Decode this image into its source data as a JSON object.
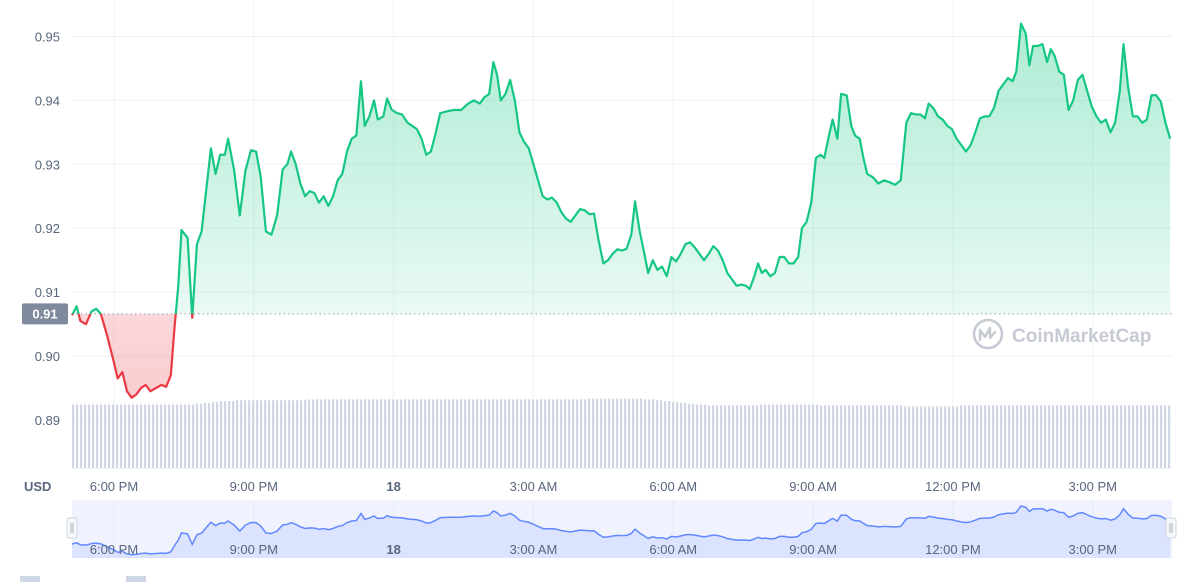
{
  "currency_label": "USD",
  "watermark": "CoinMarketCap",
  "reference_price_label": "0.91",
  "colors": {
    "up": "#16c784",
    "down": "#ea3943",
    "grid": "#eff2f5",
    "volume": "#cfd6e4",
    "navigator_line": "#6188ff",
    "navigator_fill": "#dbe3ff",
    "ref_badge": "#808a9d"
  },
  "chart_data": {
    "type": "line",
    "title": "",
    "xlabel": "",
    "ylabel": "USD",
    "ylim": [
      0.8825,
      0.9557
    ],
    "yticks": [
      0.89,
      0.9,
      0.91,
      0.92,
      0.93,
      0.94,
      0.95
    ],
    "ytick_labels": [
      "0.89",
      "0.90",
      "0.91",
      "0.92",
      "0.93",
      "0.94",
      "0.95"
    ],
    "xlim_hours": [
      17.1,
      40.7
    ],
    "xticks": [
      {
        "t": 18,
        "label": "6:00 PM",
        "bold": false
      },
      {
        "t": 21,
        "label": "9:00 PM",
        "bold": false
      },
      {
        "t": 24,
        "label": "18",
        "bold": true
      },
      {
        "t": 27,
        "label": "3:00 AM",
        "bold": false
      },
      {
        "t": 30,
        "label": "6:00 AM",
        "bold": false
      },
      {
        "t": 33,
        "label": "9:00 AM",
        "bold": false
      },
      {
        "t": 36,
        "label": "12:00 PM",
        "bold": false
      },
      {
        "t": 39,
        "label": "3:00 PM",
        "bold": false
      }
    ],
    "reference_value": 0.9066,
    "grid": true,
    "series": [
      {
        "points": [
          [
            17.1,
            0.9064
          ],
          [
            17.2,
            0.9078
          ],
          [
            17.28,
            0.9055
          ],
          [
            17.4,
            0.905
          ],
          [
            17.52,
            0.907
          ],
          [
            17.62,
            0.9074
          ],
          [
            17.72,
            0.9066
          ],
          [
            17.85,
            0.9033
          ],
          [
            18.0,
            0.899
          ],
          [
            18.08,
            0.8965
          ],
          [
            18.18,
            0.8975
          ],
          [
            18.28,
            0.8945
          ],
          [
            18.38,
            0.8935
          ],
          [
            18.48,
            0.894
          ],
          [
            18.58,
            0.895
          ],
          [
            18.68,
            0.8955
          ],
          [
            18.78,
            0.8945
          ],
          [
            18.9,
            0.895
          ],
          [
            19.02,
            0.8955
          ],
          [
            19.12,
            0.8952
          ],
          [
            19.22,
            0.897
          ],
          [
            19.3,
            0.9045
          ],
          [
            19.38,
            0.911
          ],
          [
            19.45,
            0.9197
          ],
          [
            19.58,
            0.9185
          ],
          [
            19.68,
            0.906
          ],
          [
            19.78,
            0.9175
          ],
          [
            19.88,
            0.9195
          ],
          [
            19.98,
            0.926
          ],
          [
            20.08,
            0.9325
          ],
          [
            20.18,
            0.9285
          ],
          [
            20.28,
            0.9315
          ],
          [
            20.38,
            0.9315
          ],
          [
            20.45,
            0.934
          ],
          [
            20.58,
            0.929
          ],
          [
            20.7,
            0.922
          ],
          [
            20.82,
            0.929
          ],
          [
            20.94,
            0.9322
          ],
          [
            21.05,
            0.932
          ],
          [
            21.15,
            0.928
          ],
          [
            21.26,
            0.9195
          ],
          [
            21.38,
            0.919
          ],
          [
            21.5,
            0.922
          ],
          [
            21.62,
            0.9292
          ],
          [
            21.72,
            0.93
          ],
          [
            21.8,
            0.932
          ],
          [
            21.9,
            0.93
          ],
          [
            22.0,
            0.927
          ],
          [
            22.1,
            0.925
          ],
          [
            22.2,
            0.9258
          ],
          [
            22.3,
            0.9255
          ],
          [
            22.4,
            0.924
          ],
          [
            22.5,
            0.925
          ],
          [
            22.6,
            0.9235
          ],
          [
            22.7,
            0.925
          ],
          [
            22.8,
            0.9275
          ],
          [
            22.9,
            0.9285
          ],
          [
            23.0,
            0.932
          ],
          [
            23.1,
            0.934
          ],
          [
            23.2,
            0.9345
          ],
          [
            23.3,
            0.943
          ],
          [
            23.38,
            0.936
          ],
          [
            23.48,
            0.9375
          ],
          [
            23.58,
            0.94
          ],
          [
            23.66,
            0.937
          ],
          [
            23.78,
            0.9375
          ],
          [
            23.86,
            0.9403
          ],
          [
            23.96,
            0.9385
          ],
          [
            24.08,
            0.938
          ],
          [
            24.18,
            0.9378
          ],
          [
            24.3,
            0.9365
          ],
          [
            24.4,
            0.936
          ],
          [
            24.5,
            0.9355
          ],
          [
            24.6,
            0.934
          ],
          [
            24.7,
            0.9315
          ],
          [
            24.8,
            0.932
          ],
          [
            24.9,
            0.9348
          ],
          [
            25.0,
            0.938
          ],
          [
            25.15,
            0.9383
          ],
          [
            25.3,
            0.9385
          ],
          [
            25.45,
            0.9385
          ],
          [
            25.6,
            0.9395
          ],
          [
            25.72,
            0.94
          ],
          [
            25.85,
            0.9395
          ],
          [
            25.95,
            0.9405
          ],
          [
            26.05,
            0.941
          ],
          [
            26.14,
            0.946
          ],
          [
            26.22,
            0.944
          ],
          [
            26.3,
            0.94
          ],
          [
            26.4,
            0.941
          ],
          [
            26.5,
            0.9432
          ],
          [
            26.6,
            0.94
          ],
          [
            26.7,
            0.935
          ],
          [
            26.8,
            0.9335
          ],
          [
            26.9,
            0.9325
          ],
          [
            27.0,
            0.93
          ],
          [
            27.1,
            0.9275
          ],
          [
            27.2,
            0.925
          ],
          [
            27.3,
            0.9245
          ],
          [
            27.4,
            0.9248
          ],
          [
            27.5,
            0.924
          ],
          [
            27.6,
            0.9225
          ],
          [
            27.7,
            0.9215
          ],
          [
            27.8,
            0.921
          ],
          [
            27.9,
            0.922
          ],
          [
            28.0,
            0.923
          ],
          [
            28.1,
            0.9228
          ],
          [
            28.2,
            0.9222
          ],
          [
            28.3,
            0.9223
          ],
          [
            28.4,
            0.918
          ],
          [
            28.5,
            0.9145
          ],
          [
            28.6,
            0.915
          ],
          [
            28.7,
            0.916
          ],
          [
            28.8,
            0.9167
          ],
          [
            28.9,
            0.9165
          ],
          [
            29.0,
            0.9168
          ],
          [
            29.1,
            0.919
          ],
          [
            29.18,
            0.9242
          ],
          [
            29.28,
            0.9195
          ],
          [
            29.38,
            0.916
          ],
          [
            29.46,
            0.913
          ],
          [
            29.56,
            0.915
          ],
          [
            29.66,
            0.9135
          ],
          [
            29.76,
            0.914
          ],
          [
            29.86,
            0.9125
          ],
          [
            29.96,
            0.9155
          ],
          [
            30.06,
            0.9148
          ],
          [
            30.16,
            0.916
          ],
          [
            30.26,
            0.9175
          ],
          [
            30.36,
            0.9178
          ],
          [
            30.46,
            0.917
          ],
          [
            30.56,
            0.916
          ],
          [
            30.66,
            0.915
          ],
          [
            30.76,
            0.916
          ],
          [
            30.86,
            0.9172
          ],
          [
            30.96,
            0.9165
          ],
          [
            31.06,
            0.915
          ],
          [
            31.16,
            0.913
          ],
          [
            31.26,
            0.912
          ],
          [
            31.36,
            0.911
          ],
          [
            31.46,
            0.9112
          ],
          [
            31.56,
            0.911
          ],
          [
            31.64,
            0.9105
          ],
          [
            31.74,
            0.9125
          ],
          [
            31.82,
            0.9145
          ],
          [
            31.9,
            0.913
          ],
          [
            31.98,
            0.9135
          ],
          [
            32.08,
            0.9125
          ],
          [
            32.18,
            0.913
          ],
          [
            32.28,
            0.9155
          ],
          [
            32.38,
            0.9155
          ],
          [
            32.48,
            0.9145
          ],
          [
            32.58,
            0.9145
          ],
          [
            32.68,
            0.9155
          ],
          [
            32.76,
            0.92
          ],
          [
            32.86,
            0.921
          ],
          [
            32.96,
            0.924
          ],
          [
            33.06,
            0.931
          ],
          [
            33.16,
            0.9315
          ],
          [
            33.24,
            0.931
          ],
          [
            33.34,
            0.9345
          ],
          [
            33.42,
            0.937
          ],
          [
            33.52,
            0.934
          ],
          [
            33.6,
            0.941
          ],
          [
            33.72,
            0.9408
          ],
          [
            33.82,
            0.936
          ],
          [
            33.9,
            0.9345
          ],
          [
            34.0,
            0.934
          ],
          [
            34.08,
            0.931
          ],
          [
            34.16,
            0.9285
          ],
          [
            34.28,
            0.928
          ],
          [
            34.4,
            0.927
          ],
          [
            34.52,
            0.9275
          ],
          [
            34.64,
            0.9272
          ],
          [
            34.76,
            0.9268
          ],
          [
            34.88,
            0.9275
          ],
          [
            35.0,
            0.9365
          ],
          [
            35.1,
            0.938
          ],
          [
            35.2,
            0.9378
          ],
          [
            35.3,
            0.9378
          ],
          [
            35.4,
            0.9372
          ],
          [
            35.48,
            0.9395
          ],
          [
            35.58,
            0.9388
          ],
          [
            35.68,
            0.9375
          ],
          [
            35.78,
            0.937
          ],
          [
            35.88,
            0.936
          ],
          [
            35.98,
            0.9355
          ],
          [
            36.08,
            0.934
          ],
          [
            36.18,
            0.933
          ],
          [
            36.28,
            0.932
          ],
          [
            36.38,
            0.933
          ],
          [
            36.48,
            0.935
          ],
          [
            36.58,
            0.9372
          ],
          [
            36.68,
            0.9375
          ],
          [
            36.78,
            0.9375
          ],
          [
            36.88,
            0.9388
          ],
          [
            36.98,
            0.9415
          ],
          [
            37.08,
            0.9425
          ],
          [
            37.18,
            0.9435
          ],
          [
            37.28,
            0.943
          ],
          [
            37.36,
            0.9445
          ],
          [
            37.46,
            0.952
          ],
          [
            37.56,
            0.9505
          ],
          [
            37.64,
            0.9455
          ],
          [
            37.72,
            0.9485
          ],
          [
            37.82,
            0.9485
          ],
          [
            37.92,
            0.9488
          ],
          [
            38.02,
            0.946
          ],
          [
            38.1,
            0.948
          ],
          [
            38.18,
            0.947
          ],
          [
            38.28,
            0.9445
          ],
          [
            38.38,
            0.944
          ],
          [
            38.48,
            0.9385
          ],
          [
            38.58,
            0.94
          ],
          [
            38.68,
            0.9432
          ],
          [
            38.78,
            0.944
          ],
          [
            38.88,
            0.9415
          ],
          [
            38.98,
            0.939
          ],
          [
            39.08,
            0.9375
          ],
          [
            39.18,
            0.9365
          ],
          [
            39.28,
            0.937
          ],
          [
            39.38,
            0.935
          ],
          [
            39.48,
            0.9365
          ],
          [
            39.58,
            0.9415
          ],
          [
            39.66,
            0.9488
          ],
          [
            39.76,
            0.942
          ],
          [
            39.86,
            0.9375
          ],
          [
            39.96,
            0.9375
          ],
          [
            40.06,
            0.9365
          ],
          [
            40.16,
            0.937
          ],
          [
            40.26,
            0.9408
          ],
          [
            40.36,
            0.9408
          ],
          [
            40.46,
            0.9398
          ],
          [
            40.56,
            0.9365
          ],
          [
            40.66,
            0.934
          ]
        ]
      }
    ],
    "volume_series": [
      0.72,
      0.72,
      0.72,
      0.72,
      0.72,
      0.72,
      0.72,
      0.72,
      0.72,
      0.72,
      0.72,
      0.72,
      0.72,
      0.72,
      0.72,
      0.72,
      0.72,
      0.72,
      0.72,
      0.72,
      0.72,
      0.72,
      0.72,
      0.72,
      0.72,
      0.72,
      0.72,
      0.72,
      0.72,
      0.72,
      0.72,
      0.73,
      0.73,
      0.74,
      0.74,
      0.75,
      0.75,
      0.76,
      0.76,
      0.76,
      0.76,
      0.77,
      0.77,
      0.77,
      0.77,
      0.77,
      0.77,
      0.77,
      0.77,
      0.77,
      0.77,
      0.77,
      0.77,
      0.77,
      0.77,
      0.77,
      0.77,
      0.77,
      0.77,
      0.78,
      0.78,
      0.78,
      0.78,
      0.78,
      0.78,
      0.78,
      0.78,
      0.78,
      0.78,
      0.78,
      0.78,
      0.78,
      0.78,
      0.78,
      0.78,
      0.78,
      0.78,
      0.78,
      0.78,
      0.78,
      0.78,
      0.78,
      0.78,
      0.78,
      0.78,
      0.78,
      0.78,
      0.78,
      0.78,
      0.78,
      0.78,
      0.78,
      0.78,
      0.78,
      0.78,
      0.78,
      0.78,
      0.78,
      0.78,
      0.78,
      0.78,
      0.78,
      0.78,
      0.78,
      0.78,
      0.78,
      0.78,
      0.78,
      0.78,
      0.78,
      0.78,
      0.78,
      0.78,
      0.78,
      0.78,
      0.78,
      0.78,
      0.78,
      0.78,
      0.78,
      0.78,
      0.78,
      0.78,
      0.78,
      0.78,
      0.78,
      0.78,
      0.78,
      0.78,
      0.79,
      0.79,
      0.79,
      0.79,
      0.79,
      0.79,
      0.79,
      0.79,
      0.79,
      0.79,
      0.79,
      0.79,
      0.79,
      0.79,
      0.78,
      0.78,
      0.78,
      0.77,
      0.77,
      0.76,
      0.76,
      0.75,
      0.75,
      0.74,
      0.74,
      0.73,
      0.73,
      0.72,
      0.72,
      0.72,
      0.71,
      0.71,
      0.71,
      0.71,
      0.71,
      0.71,
      0.71,
      0.71,
      0.71,
      0.71,
      0.71,
      0.71,
      0.71,
      0.72,
      0.72,
      0.72,
      0.72,
      0.72,
      0.72,
      0.72,
      0.72,
      0.72,
      0.72,
      0.72,
      0.72,
      0.72,
      0.72,
      0.72,
      0.71,
      0.71,
      0.71,
      0.71,
      0.71,
      0.71,
      0.71,
      0.71,
      0.71,
      0.71,
      0.71,
      0.71,
      0.71,
      0.71,
      0.71,
      0.71,
      0.71,
      0.71,
      0.71,
      0.71,
      0.71,
      0.7,
      0.7,
      0.7,
      0.7,
      0.7,
      0.7,
      0.7,
      0.7,
      0.7,
      0.7,
      0.7,
      0.7,
      0.7,
      0.7,
      0.71,
      0.71,
      0.71,
      0.71,
      0.71,
      0.71,
      0.71,
      0.71,
      0.71,
      0.71,
      0.71,
      0.71,
      0.71,
      0.71,
      0.71,
      0.71,
      0.71,
      0.71,
      0.71,
      0.71,
      0.71,
      0.71,
      0.71,
      0.71,
      0.71,
      0.71,
      0.71,
      0.71,
      0.71,
      0.71,
      0.71,
      0.71,
      0.71,
      0.71,
      0.71,
      0.71,
      0.71,
      0.71,
      0.71,
      0.71,
      0.71,
      0.71,
      0.71,
      0.71,
      0.71,
      0.71,
      0.71,
      0.71,
      0.71,
      0.71,
      0.71,
      0.71,
      0.71
    ]
  }
}
